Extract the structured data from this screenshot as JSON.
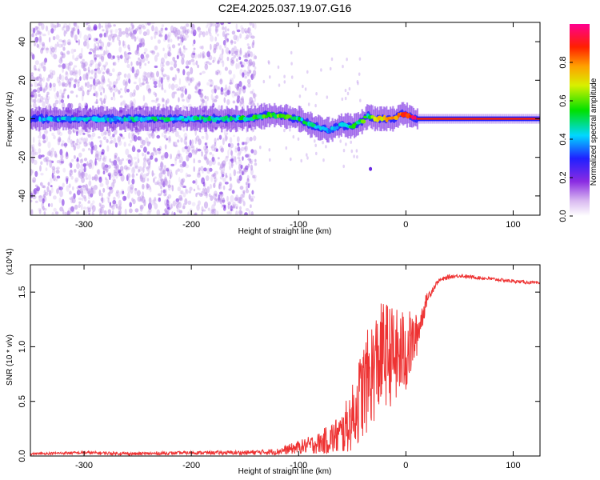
{
  "title": "C2E4.2025.037.19.07.G16",
  "chart_data": [
    {
      "type": "heatmap",
      "xlabel": "Height of straight line (km)",
      "ylabel": "Frequency (Hz)",
      "xlim": [
        -350,
        125
      ],
      "ylim": [
        -50,
        50
      ],
      "xticks": [
        -300,
        -200,
        -100,
        0,
        100
      ],
      "yticks": [
        -40,
        -20,
        0,
        20,
        40
      ],
      "colorbar": {
        "label": "Normalized spectral amplitude",
        "range": [
          0,
          1
        ],
        "ticks": [
          "0.0",
          "0.2",
          "0.4",
          "0.6",
          "0.8"
        ],
        "colormap": "rainbow (white-violet-blue-cyan-green-yellow-red-magenta)"
      },
      "ridge": {
        "description": "main frequency ridge",
        "x": [
          -350,
          -300,
          -250,
          -200,
          -150,
          -125,
          -110,
          -100,
          -90,
          -80,
          -70,
          -60,
          -50,
          -40,
          -35,
          -30,
          -20,
          -10,
          -5,
          0,
          5,
          10,
          50,
          100,
          125
        ],
        "y": [
          0,
          0,
          0,
          0,
          0,
          2,
          1,
          0,
          -3,
          -5,
          -6,
          -3,
          -4,
          -1,
          2,
          0,
          0,
          0,
          3,
          2,
          1,
          0,
          0,
          0,
          0
        ],
        "amplitude": [
          0.35,
          0.4,
          0.45,
          0.45,
          0.5,
          0.55,
          0.6,
          0.5,
          0.45,
          0.45,
          0.4,
          0.45,
          0.5,
          0.55,
          0.5,
          0.7,
          0.75,
          0.8,
          0.8,
          0.85,
          0.9,
          0.95,
          0.95,
          0.95,
          0.95
        ]
      },
      "noise_region_x": [
        -350,
        -140
      ]
    },
    {
      "type": "line",
      "xlabel": "Height of straight line (km)",
      "ylabel": "SNR (10 * v/v)",
      "yscale_label": "(x10^4)",
      "xlim": [
        -350,
        125
      ],
      "ylim": [
        0,
        1.75
      ],
      "xticks": [
        -300,
        -200,
        -100,
        0,
        100
      ],
      "yticks": [
        "0.0",
        "0.5",
        "1.0",
        "1.5"
      ],
      "ytick_values": [
        0,
        0.5,
        1.0,
        1.5
      ],
      "color": "#ee3333",
      "series": [
        {
          "x": [
            -350,
            -300,
            -250,
            -200,
            -150,
            -120,
            -100,
            -80,
            -60,
            -50,
            -40,
            -30,
            -20,
            -10,
            0,
            10,
            20,
            30,
            40,
            50,
            60,
            80,
            100,
            125
          ],
          "y": [
            0.02,
            0.03,
            0.02,
            0.03,
            0.03,
            0.04,
            0.08,
            0.12,
            0.2,
            0.35,
            0.6,
            0.8,
            0.95,
            0.9,
            0.95,
            1.1,
            1.45,
            1.6,
            1.64,
            1.65,
            1.64,
            1.62,
            1.6,
            1.58
          ],
          "spread": [
            0.01,
            0.015,
            0.015,
            0.015,
            0.02,
            0.03,
            0.06,
            0.1,
            0.2,
            0.3,
            0.45,
            0.5,
            0.5,
            0.45,
            0.4,
            0.2,
            0.05,
            0.02,
            0.02,
            0.015,
            0.015,
            0.015,
            0.015,
            0.015
          ]
        }
      ]
    }
  ]
}
